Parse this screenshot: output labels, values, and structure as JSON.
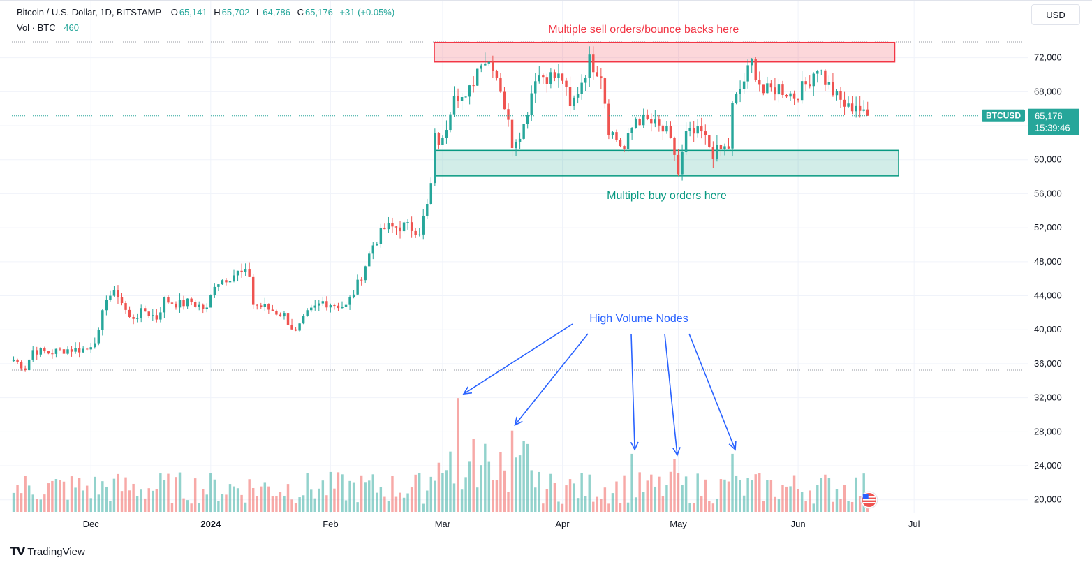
{
  "header": {
    "symbol_line": "Bitcoin / U.S. Dollar, 1D, BITSTAMP",
    "o_label": "O",
    "o_value": "65,141",
    "h_label": "H",
    "h_value": "65,702",
    "l_label": "L",
    "l_value": "64,786",
    "c_label": "C",
    "c_value": "65,176",
    "change": "+31 (+0.05%)",
    "vol_label": "Vol · BTC",
    "vol_value": "460"
  },
  "currency_button": "USD",
  "price_tag": {
    "symbol": "BTCUSD",
    "price": "65,176",
    "countdown": "15:39:46"
  },
  "footer": {
    "brand": "TradingView",
    "logo": "tradingview-logo"
  },
  "colors": {
    "up": "#26a69a",
    "down": "#ef5350",
    "sell_zone": "#f23645",
    "buy_zone": "#089981",
    "annotation_blue": "#2962ff"
  },
  "annotations": {
    "sell_zone_label": "Multiple sell orders/bounce backs here",
    "buy_zone_label": "Multiple buy orders here",
    "volume_label": "High Volume Nodes",
    "sell_zone_range": [
      71500,
      73800
    ],
    "buy_zone_range": [
      58100,
      61100
    ],
    "sell_zone_dates": [
      "2024-03-05",
      "2024-06-26"
    ],
    "buy_zone_dates": [
      "2024-02-28",
      "2024-06-27"
    ]
  },
  "chart_data": {
    "type": "candlestick",
    "title": "Bitcoin / U.S. Dollar, 1D, BITSTAMP",
    "x_range": [
      "2023-11-10",
      "2024-07-25"
    ],
    "y_range": [
      18500,
      75500
    ],
    "y_ticks": [
      20000,
      24000,
      28000,
      32000,
      36000,
      40000,
      44000,
      48000,
      52000,
      56000,
      60000,
      64000,
      68000,
      72000
    ],
    "y_tick_labels": [
      "20,000",
      "24,000",
      "28,000",
      "32,000",
      "36,000",
      "40,000",
      "44,000",
      "48,000",
      "52,000",
      "56,000",
      "60,000",
      "64,000",
      "68,000",
      "72,000"
    ],
    "x_ticks": [
      {
        "date": "2023-12-01",
        "label": "Dec"
      },
      {
        "date": "2024-01-01",
        "label": "2024"
      },
      {
        "date": "2024-02-01",
        "label": "Feb"
      },
      {
        "date": "2024-03-01",
        "label": "Mar"
      },
      {
        "date": "2024-04-01",
        "label": "Apr"
      },
      {
        "date": "2024-05-01",
        "label": "May"
      },
      {
        "date": "2024-06-01",
        "label": "Jun"
      },
      {
        "date": "2024-07-01",
        "label": "Jul"
      }
    ],
    "start_date": "2023-11-11",
    "anchors": [
      [
        "2023-11-11",
        36500
      ],
      [
        "2023-11-14",
        35500
      ],
      [
        "2023-11-16",
        37600
      ],
      [
        "2023-11-20",
        37300
      ],
      [
        "2023-11-25",
        37700
      ],
      [
        "2023-11-30",
        37700
      ],
      [
        "2023-12-03",
        39500
      ],
      [
        "2023-12-05",
        44000
      ],
      [
        "2023-12-08",
        44200
      ],
      [
        "2023-12-11",
        41300
      ],
      [
        "2023-12-15",
        42200
      ],
      [
        "2023-12-18",
        41400
      ],
      [
        "2023-12-20",
        43500
      ],
      [
        "2023-12-24",
        43000
      ],
      [
        "2023-12-27",
        43300
      ],
      [
        "2023-12-31",
        42300
      ],
      [
        "2024-01-02",
        45500
      ],
      [
        "2024-01-08",
        46700
      ],
      [
        "2024-01-11",
        46500
      ],
      [
        "2024-01-12",
        43000
      ],
      [
        "2024-01-15",
        42600
      ],
      [
        "2024-01-20",
        41700
      ],
      [
        "2024-01-23",
        39600
      ],
      [
        "2024-01-26",
        41800
      ],
      [
        "2024-01-30",
        43300
      ],
      [
        "2024-02-05",
        42700
      ],
      [
        "2024-02-08",
        45300
      ],
      [
        "2024-02-12",
        50000
      ],
      [
        "2024-02-15",
        51900
      ],
      [
        "2024-02-20",
        52200
      ],
      [
        "2024-02-24",
        51700
      ],
      [
        "2024-02-26",
        54500
      ],
      [
        "2024-02-27",
        57000
      ],
      [
        "2024-02-28",
        62500
      ],
      [
        "2024-03-01",
        62000
      ],
      [
        "2024-03-04",
        68300
      ],
      [
        "2024-03-07",
        66800
      ],
      [
        "2024-03-11",
        72000
      ],
      [
        "2024-03-14",
        71300
      ],
      [
        "2024-03-16",
        68500
      ],
      [
        "2024-03-19",
        62000
      ],
      [
        "2024-03-22",
        64000
      ],
      [
        "2024-03-25",
        70000
      ],
      [
        "2024-03-29",
        69800
      ],
      [
        "2024-04-01",
        69600
      ],
      [
        "2024-04-03",
        65900
      ],
      [
        "2024-04-08",
        71600
      ],
      [
        "2024-04-11",
        70200
      ],
      [
        "2024-04-13",
        63700
      ],
      [
        "2024-04-17",
        61200
      ],
      [
        "2024-04-20",
        64900
      ],
      [
        "2024-04-24",
        64300
      ],
      [
        "2024-04-28",
        63100
      ],
      [
        "2024-04-30",
        60700
      ],
      [
        "2024-05-01",
        58300
      ],
      [
        "2024-05-03",
        62900
      ],
      [
        "2024-05-07",
        63100
      ],
      [
        "2024-05-10",
        60800
      ],
      [
        "2024-05-14",
        61500
      ],
      [
        "2024-05-15",
        66200
      ],
      [
        "2024-05-20",
        71400
      ],
      [
        "2024-05-23",
        67900
      ],
      [
        "2024-05-27",
        68500
      ],
      [
        "2024-05-31",
        67500
      ],
      [
        "2024-06-03",
        68800
      ],
      [
        "2024-06-06",
        71100
      ],
      [
        "2024-06-08",
        69300
      ],
      [
        "2024-06-11",
        67300
      ],
      [
        "2024-06-14",
        66000
      ],
      [
        "2024-06-16",
        66600
      ],
      [
        "2024-06-18",
        65200
      ],
      [
        "2024-06-19",
        65176
      ]
    ],
    "volume_range": [
      18500,
      35200
    ],
    "volume_peaks": [
      {
        "date": "2024-03-05",
        "value": 33200
      },
      {
        "date": "2024-03-19",
        "value": 29000
      },
      {
        "date": "2024-04-19",
        "value": 26000
      },
      {
        "date": "2024-04-30",
        "value": 25300
      },
      {
        "date": "2024-05-15",
        "value": 26000
      }
    ]
  }
}
